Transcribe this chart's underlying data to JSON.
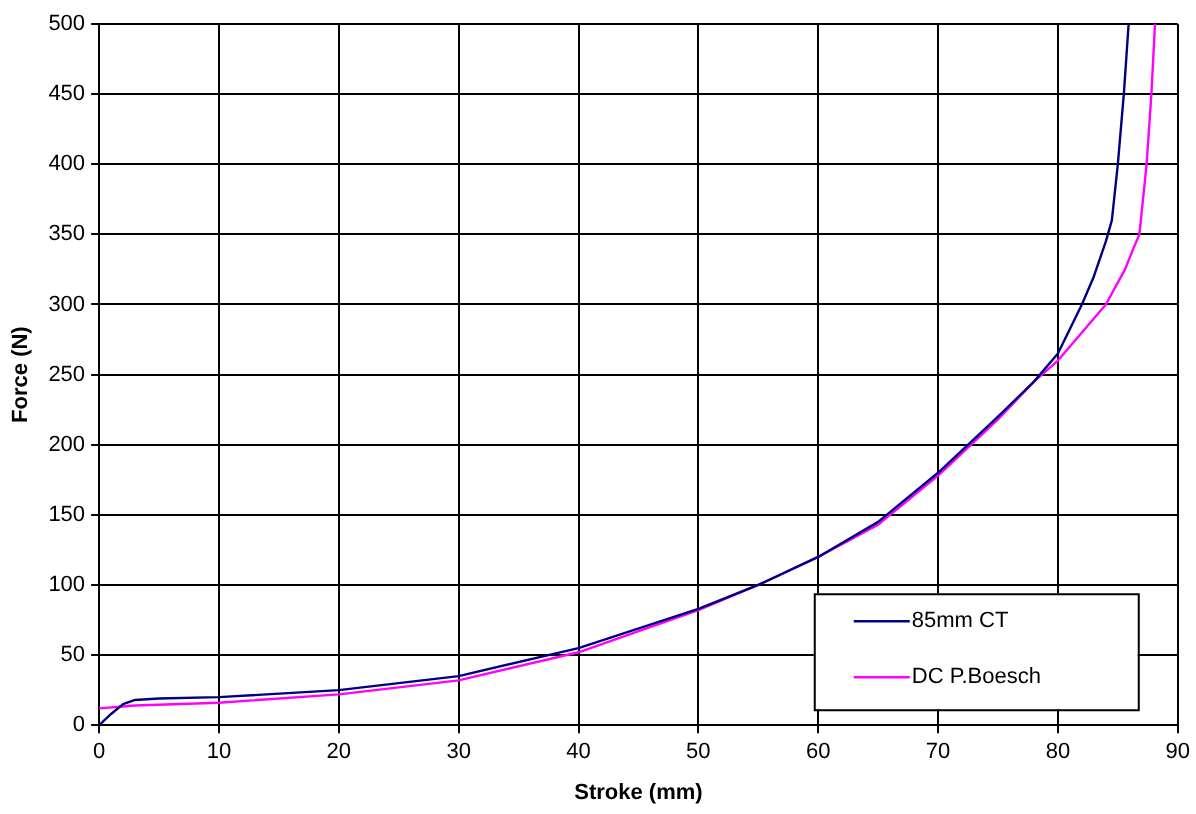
{
  "chart_data": {
    "type": "line",
    "xlabel": "Stroke (mm)",
    "ylabel": "Force (N)",
    "xlim": [
      0,
      90
    ],
    "xticks": [
      0,
      10,
      20,
      30,
      40,
      50,
      60,
      70,
      80,
      90
    ],
    "ylim": [
      0,
      500
    ],
    "yticks": [
      0,
      50,
      100,
      150,
      200,
      250,
      300,
      350,
      400,
      450,
      500
    ],
    "grid": true,
    "legend": "bottom right",
    "marker": "none",
    "line_style": "solid",
    "series": [
      {
        "name": "85mm CT",
        "color": "#000080",
        "x": [
          0,
          1,
          2,
          3,
          5,
          10,
          20,
          30,
          40,
          50,
          55,
          60,
          65,
          70,
          75,
          78,
          80,
          82,
          83,
          84,
          84.5,
          85,
          85.5,
          85.9
        ],
        "values": [
          0,
          8,
          15,
          18,
          19,
          20,
          25,
          35,
          55,
          83,
          100,
          120,
          145,
          180,
          220,
          245,
          265,
          300,
          320,
          345,
          360,
          400,
          450,
          500
        ]
      },
      {
        "name": "DC P.Boesch",
        "color": "#ff00ff",
        "x": [
          0,
          3,
          10,
          20,
          30,
          40,
          50,
          55,
          60,
          65,
          70,
          75,
          78,
          80,
          82,
          84,
          85.6,
          86.3,
          86.8,
          87.4,
          87.8,
          88.1
        ],
        "values": [
          12,
          14,
          16,
          22,
          32,
          52,
          82,
          100,
          120,
          143,
          178,
          218,
          245,
          260,
          280,
          300,
          325,
          340,
          350,
          400,
          450,
          500
        ]
      }
    ]
  }
}
